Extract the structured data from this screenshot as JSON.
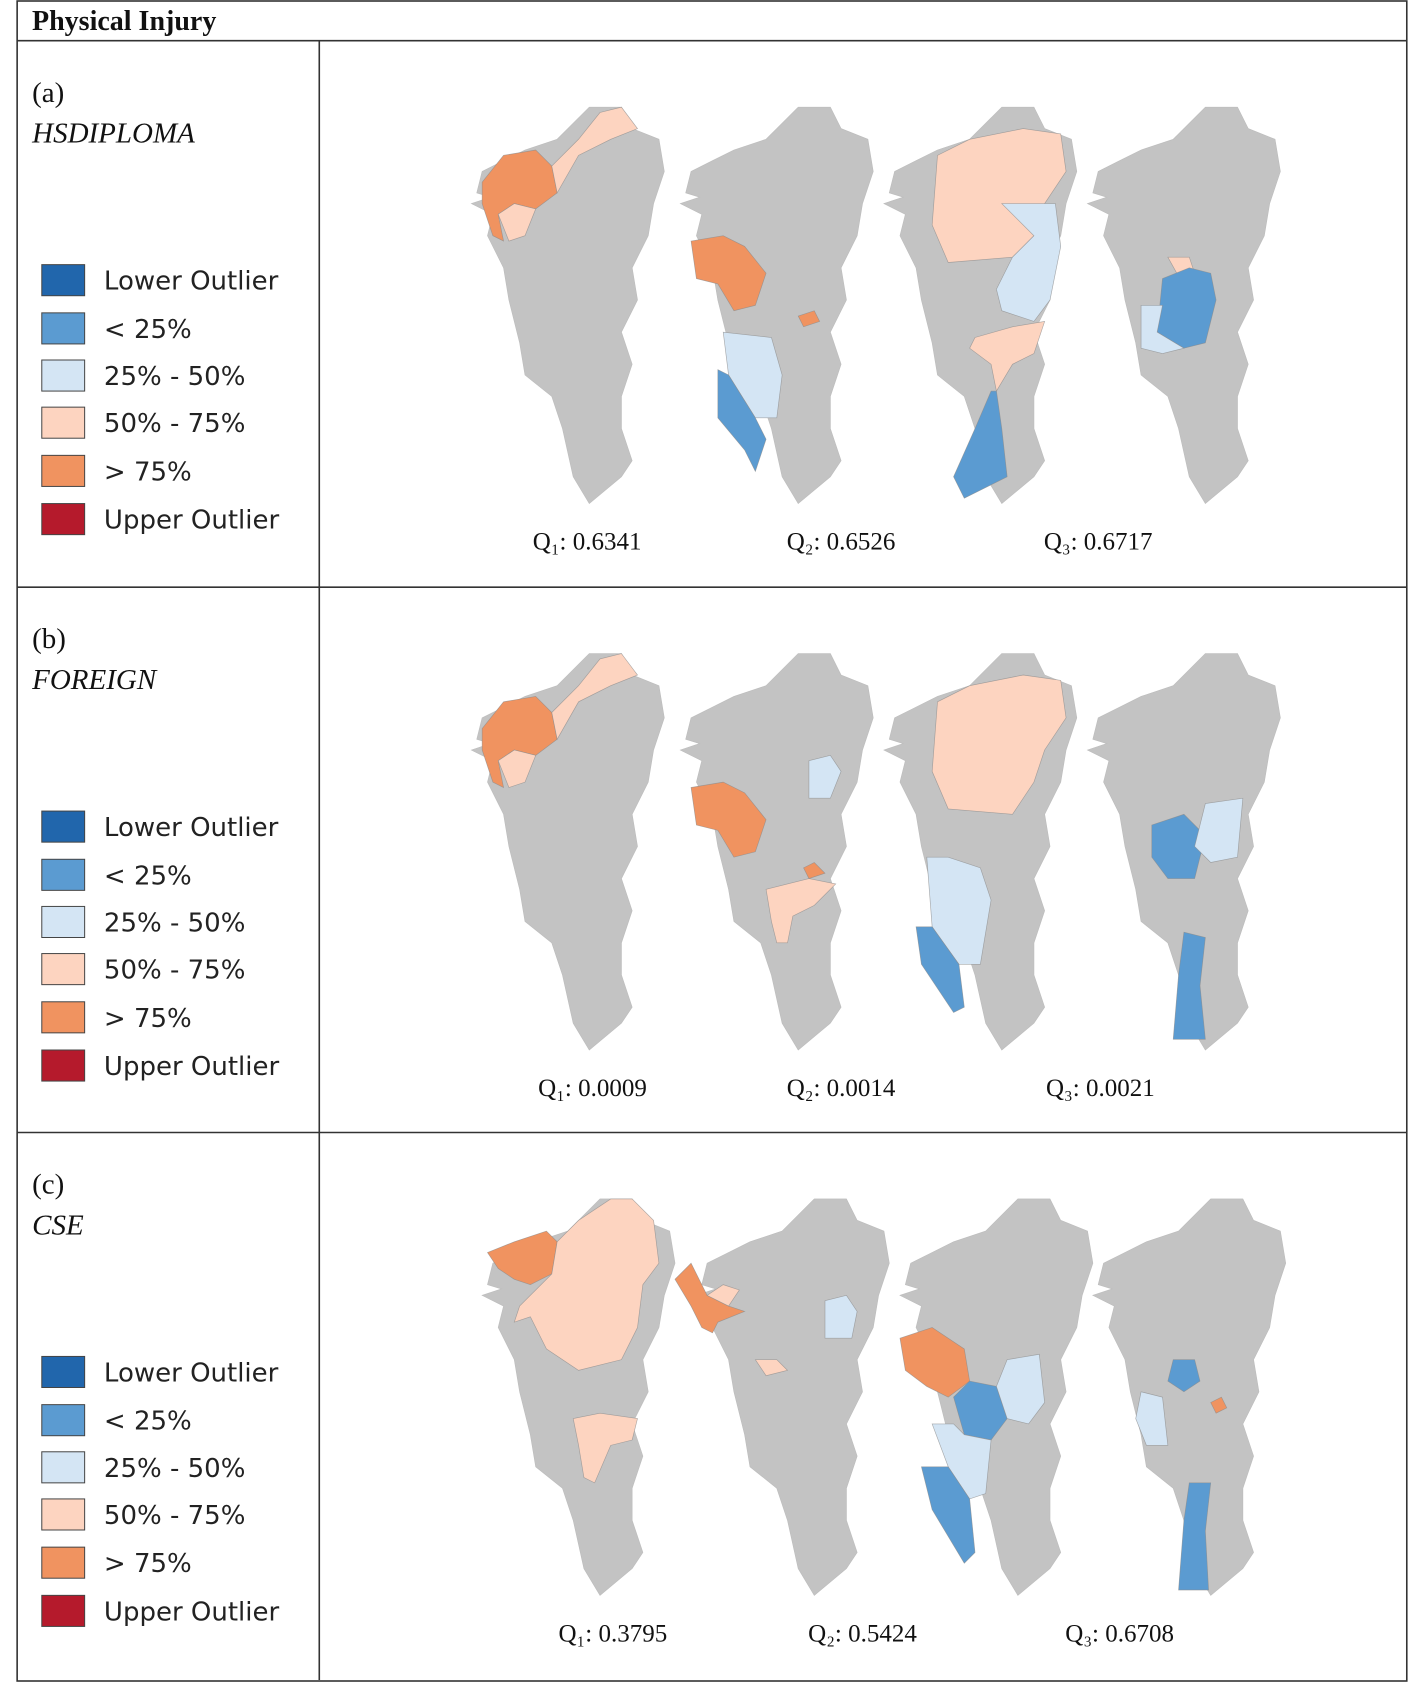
{
  "title": "Physical Injury",
  "panels": [
    {
      "label": "(a)",
      "variable": "HSDIPLOMA",
      "legend": [
        {
          "label": "Lower Outlier",
          "color": "#2166ac"
        },
        {
          "label": "< 25%",
          "color": "#5b9bd1"
        },
        {
          "label": "25% - 50%",
          "color": "#d4e5f4"
        },
        {
          "label": "50% - 75%",
          "color": "#fdd4c0"
        },
        {
          "label": "> 75%",
          "color": "#f09360"
        },
        {
          "label": "Upper Outlier",
          "color": "#b51a2c"
        }
      ],
      "quartiles": [
        "Q₁: 0.6341",
        "Q₂: 0.6526",
        "Q₃: 0.6717"
      ]
    },
    {
      "label": "(b)",
      "variable": "FOREIGN",
      "legend": [
        {
          "label": "Lower Outlier",
          "color": "#2166ac"
        },
        {
          "label": "< 25%",
          "color": "#5b9bd1"
        },
        {
          "label": "25% - 50%",
          "color": "#d4e5f4"
        },
        {
          "label": "50% - 75%",
          "color": "#fdd4c0"
        },
        {
          "label": "> 75%",
          "color": "#f09360"
        },
        {
          "label": "Upper Outlier",
          "color": "#b51a2c"
        }
      ],
      "quartiles": [
        "Q₁: 0.0009",
        "Q₂: 0.0014",
        "Q₃: 0.0021"
      ]
    },
    {
      "label": "(c)",
      "variable": "CSE",
      "legend": [
        {
          "label": "Lower Outlier",
          "color": "#2166ac"
        },
        {
          "label": "< 25%",
          "color": "#5b9bd1"
        },
        {
          "label": "25% - 50%",
          "color": "#d4e5f4"
        },
        {
          "label": "50% - 75%",
          "color": "#fdd4c0"
        },
        {
          "label": "> 75%",
          "color": "#f09360"
        },
        {
          "label": "Upper Outlier",
          "color": "#b51a2c"
        }
      ],
      "quartiles": [
        "Q₁: 0.3795",
        "Q₂: 0.5424",
        "Q₃: 0.6708"
      ]
    }
  ]
}
